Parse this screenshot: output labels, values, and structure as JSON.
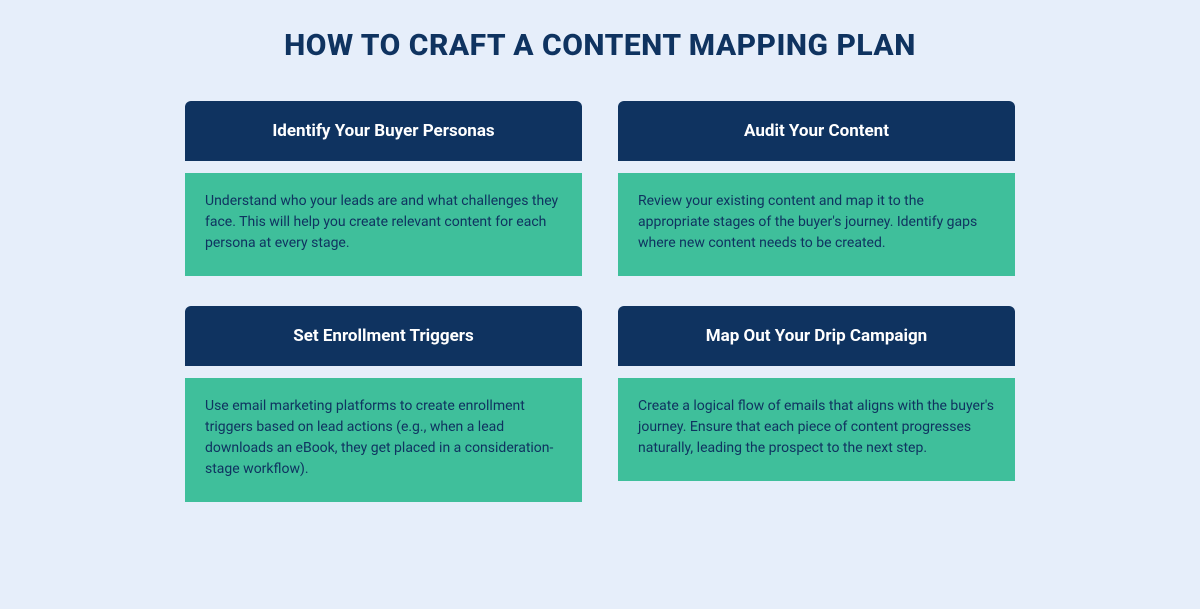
{
  "title": "HOW TO CRAFT A CONTENT MAPPING PLAN",
  "colors": {
    "page_bg": "#e6eefa",
    "header_bg": "#0f3360",
    "header_text": "#ffffff",
    "body_bg": "#3fbf9b",
    "body_text": "#0f3360",
    "title_text": "#0f3360"
  },
  "typography": {
    "title_fontsize": 30,
    "title_weight": 800,
    "card_header_fontsize": 17,
    "card_header_weight": 700,
    "card_body_fontsize": 14
  },
  "layout": {
    "grid_columns": 2,
    "grid_rows": 2,
    "column_gap": 36,
    "row_gap": 30,
    "header_body_gap": 12,
    "header_radius": 6
  },
  "cards": [
    {
      "heading": "Identify Your Buyer Personas",
      "body": "Understand who your leads are and what challenges they face. This will help you create relevant content for each persona at every stage."
    },
    {
      "heading": "Audit Your Content",
      "body": "Review your existing content and map it to the appropriate stages of the buyer's journey. Identify gaps where new content needs to be created."
    },
    {
      "heading": "Set Enrollment Triggers",
      "body": "Use email marketing platforms to create enrollment triggers based on lead actions (e.g., when a lead downloads an eBook, they get placed in a consideration-stage workflow)."
    },
    {
      "heading": "Map Out Your Drip Campaign",
      "body": "Create a logical flow of emails that aligns with the buyer's journey. Ensure that each piece of content progresses naturally, leading the prospect to the next step."
    }
  ]
}
